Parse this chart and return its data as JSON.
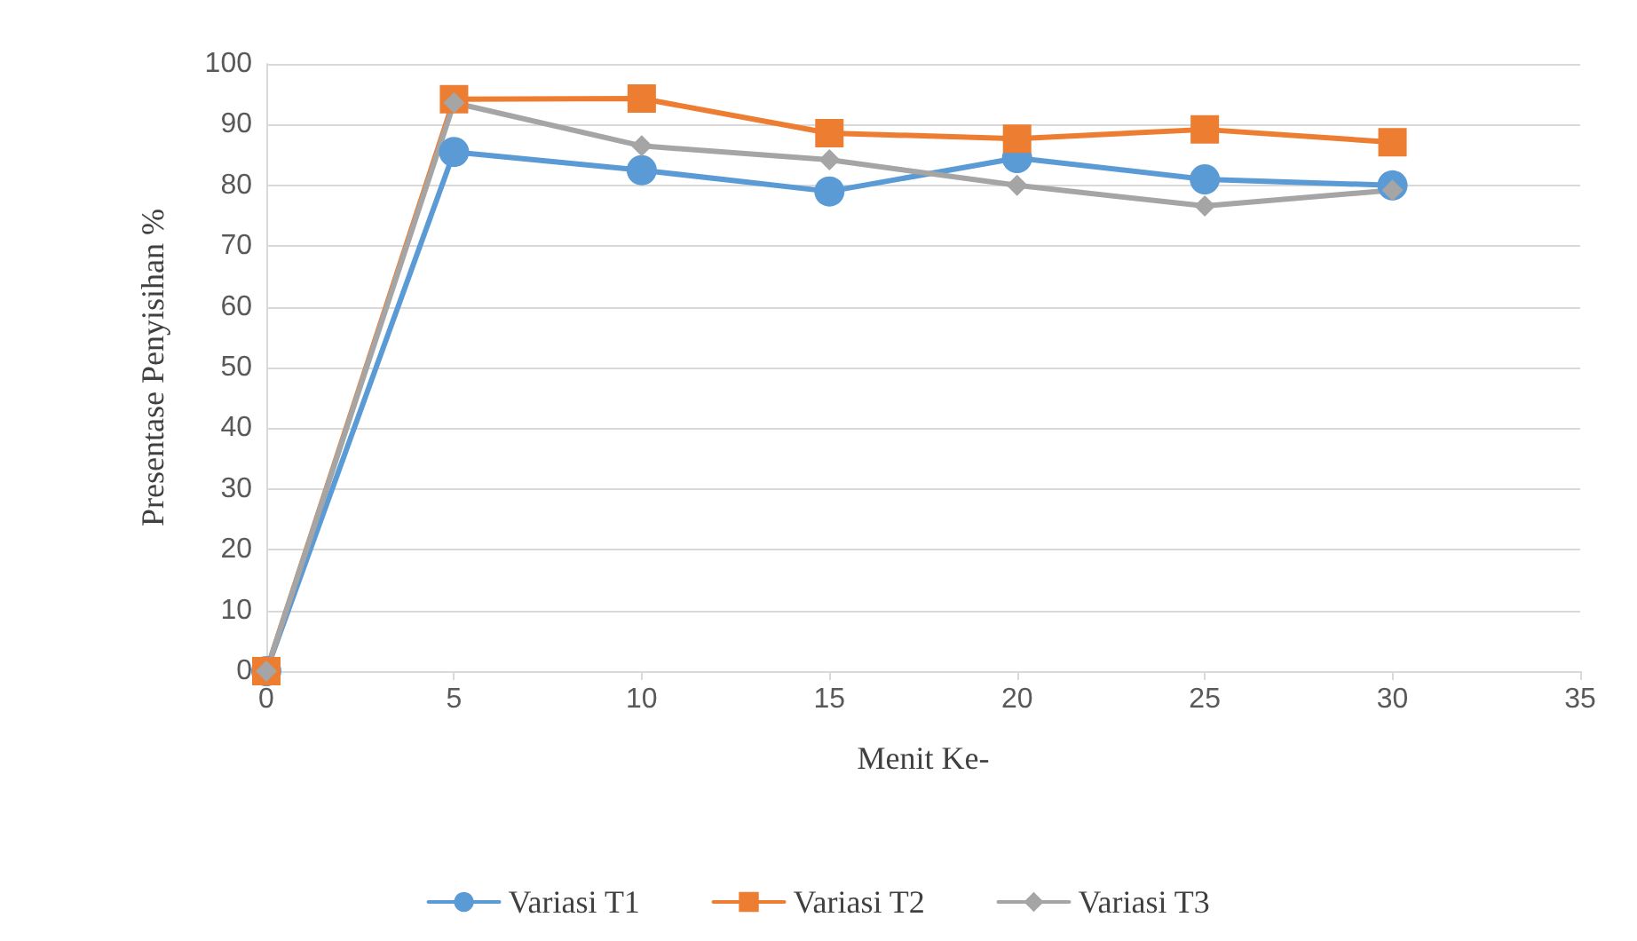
{
  "chart_data": {
    "type": "line",
    "xlabel": "Menit Ke-",
    "ylabel": "Presentase Penyisihan %",
    "x": [
      0,
      5,
      10,
      15,
      20,
      25,
      30
    ],
    "series": [
      {
        "name": "Variasi T1",
        "color": "#5b9bd5",
        "marker": "circle",
        "values": [
          0,
          85.5,
          82.5,
          79,
          84.5,
          81,
          80
        ]
      },
      {
        "name": "Variasi T2",
        "color": "#ed7d31",
        "marker": "square",
        "values": [
          0,
          94.2,
          94.3,
          88.6,
          87.7,
          89.2,
          87.1
        ]
      },
      {
        "name": "Variasi T3",
        "color": "#a5a5a5",
        "marker": "diamond",
        "values": [
          0,
          93.6,
          86.5,
          84.2,
          80,
          76.6,
          79.2
        ]
      }
    ],
    "xlim": [
      0,
      35
    ],
    "xticks": [
      0,
      5,
      10,
      15,
      20,
      25,
      30,
      35
    ],
    "ylim": [
      0,
      100
    ],
    "yticks": [
      0,
      10,
      20,
      30,
      40,
      50,
      60,
      70,
      80,
      90,
      100
    ],
    "grid": "y",
    "legend": "bottom",
    "line_style": "solid"
  }
}
